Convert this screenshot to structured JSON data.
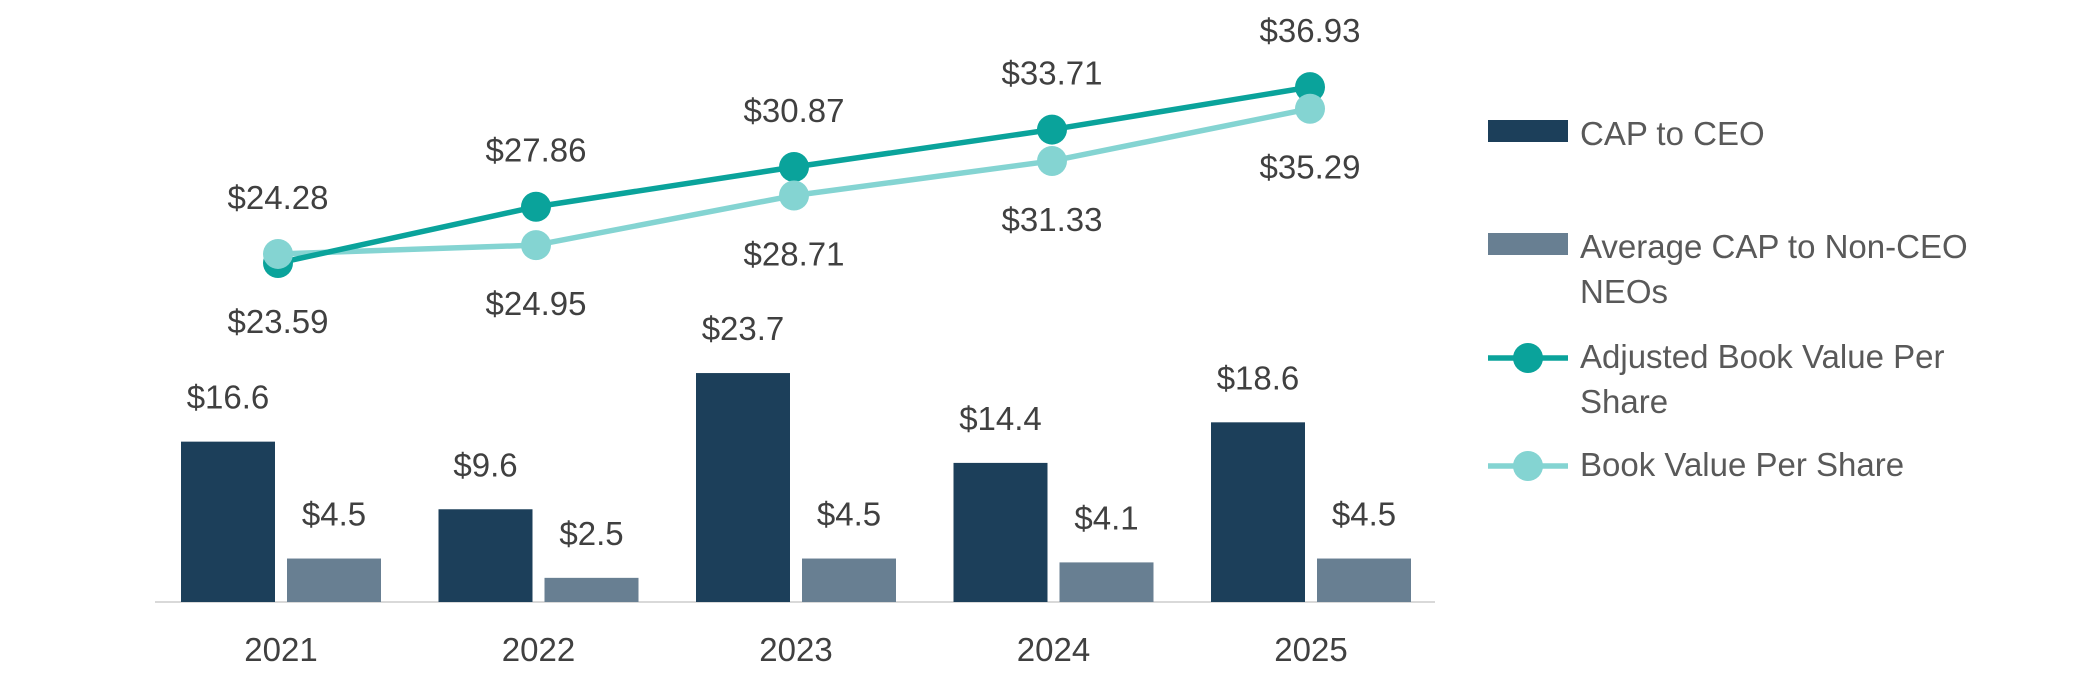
{
  "chart_data": {
    "type": "bar",
    "categories": [
      "2021",
      "2022",
      "2023",
      "2024",
      "2025"
    ],
    "bar_series": [
      {
        "name": "CAP to CEO",
        "values": [
          16.6,
          9.6,
          23.7,
          14.4,
          18.6
        ],
        "labels": [
          "$16.6",
          "$9.6",
          "$23.7",
          "$14.4",
          "$18.6"
        ],
        "color": "#1c3f5a"
      },
      {
        "name": "Average CAP to Non-CEO NEOs",
        "values": [
          4.5,
          2.5,
          4.5,
          4.1,
          4.5
        ],
        "labels": [
          "$4.5",
          "$2.5",
          "$4.5",
          "$4.1",
          "$4.5"
        ],
        "color": "#687f92"
      }
    ],
    "line_series": [
      {
        "name": "Adjusted Book Value Per Share",
        "values": [
          23.59,
          27.86,
          30.87,
          33.71,
          36.93
        ],
        "labels": [
          "$23.59",
          "$27.86",
          "$30.87",
          "$33.71",
          "$36.93"
        ],
        "color": "#0aa39b"
      },
      {
        "name": "Book Value Per Share",
        "values": [
          24.28,
          24.95,
          28.71,
          31.33,
          35.29
        ],
        "labels": [
          "$24.28",
          "$24.95",
          "$28.71",
          "$31.33",
          "$35.29"
        ],
        "color": "#84d4d2"
      }
    ],
    "legend": {
      "position": "right",
      "items": [
        {
          "lines": [
            "CAP to CEO"
          ],
          "kind": "bar",
          "color": "#1c3f5a"
        },
        {
          "lines": [
            "Average CAP to Non-CEO",
            "NEOs"
          ],
          "kind": "bar",
          "color": "#687f92"
        },
        {
          "lines": [
            "Adjusted Book Value Per",
            "Share"
          ],
          "kind": "line",
          "color": "#0aa39b"
        },
        {
          "lines": [
            " Book Value Per Share"
          ],
          "kind": "line",
          "color": "#84d4d2"
        }
      ]
    },
    "grid": false
  }
}
